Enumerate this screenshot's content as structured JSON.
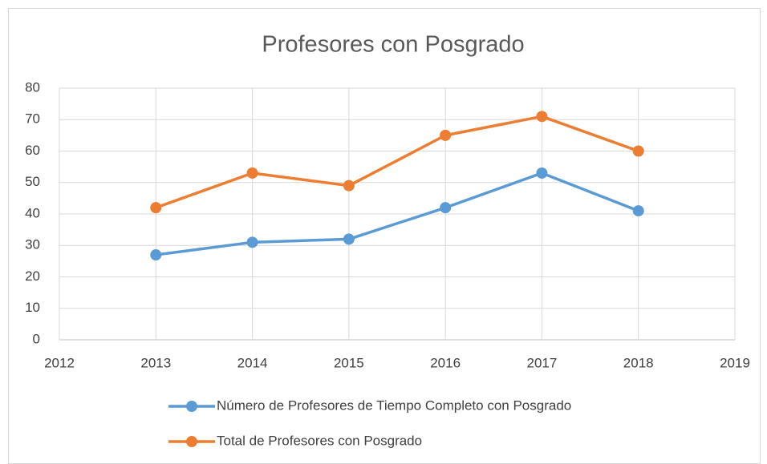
{
  "chart_data": {
    "type": "line",
    "title": "Profesores con Posgrado",
    "x": [
      2013,
      2014,
      2015,
      2016,
      2017,
      2018
    ],
    "series": [
      {
        "name": "Número de Profesores de Tiempo Completo con Posgrado",
        "color": "#5b9bd5",
        "values": [
          27,
          31,
          32,
          42,
          53,
          41
        ]
      },
      {
        "name": "Total de Profesores con Posgrado",
        "color": "#ed7d31",
        "values": [
          42,
          53,
          49,
          65,
          71,
          60
        ]
      }
    ],
    "xlim": [
      2012,
      2019
    ],
    "xticks": [
      2012,
      2013,
      2014,
      2015,
      2016,
      2017,
      2018,
      2019
    ],
    "ylim": [
      0,
      80
    ],
    "yticks": [
      0,
      10,
      20,
      30,
      40,
      50,
      60,
      70,
      80
    ],
    "grid": true,
    "legend": "bottom"
  }
}
